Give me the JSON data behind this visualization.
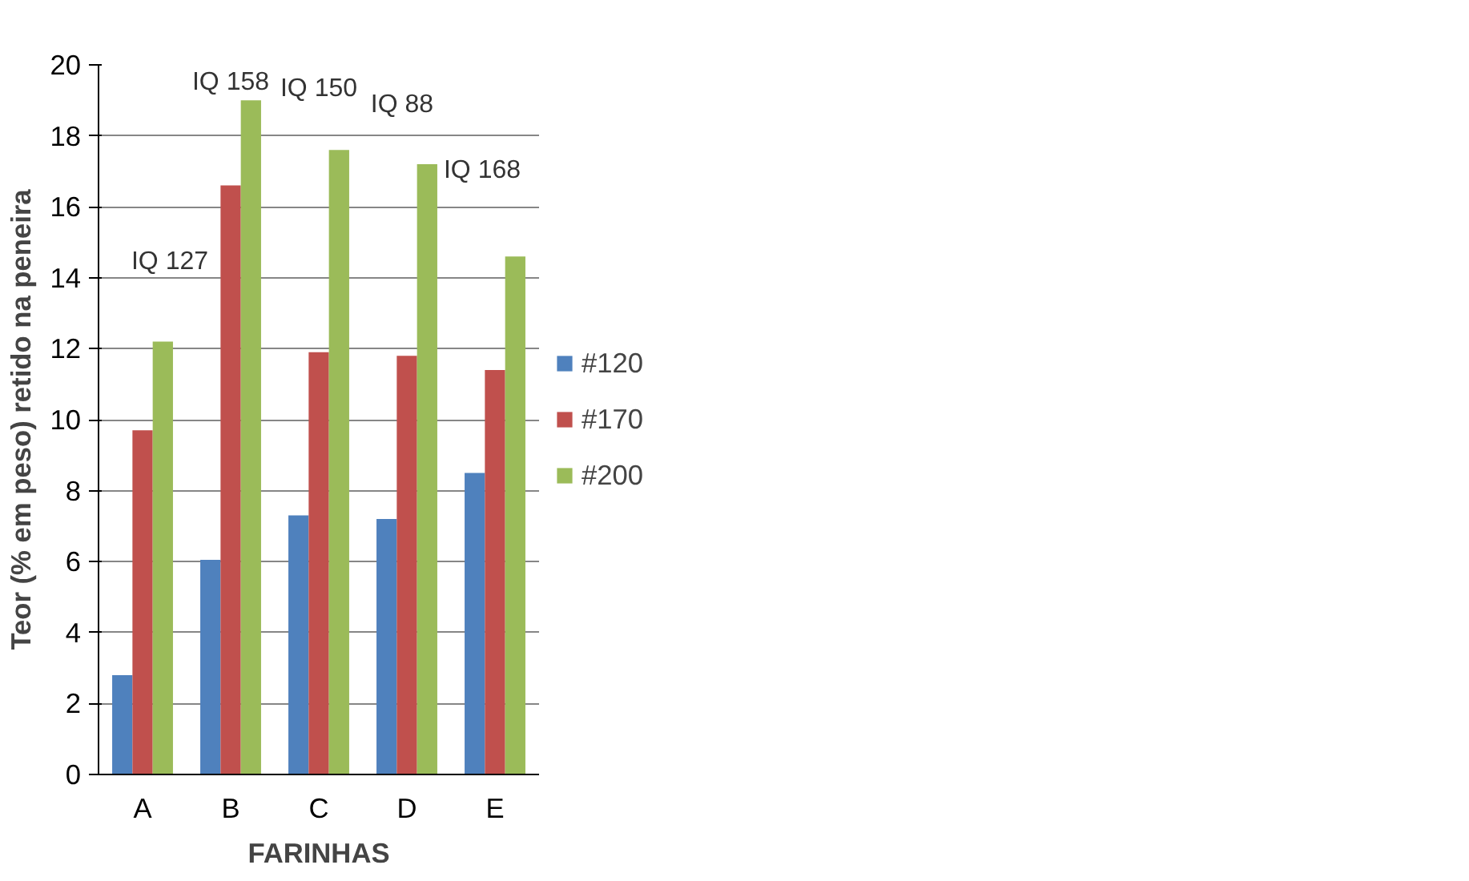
{
  "chart_data": {
    "type": "bar",
    "xlabel": "FARINHAS",
    "ylabel": "Teor (% em peso) retido na peneira",
    "categories": [
      "A",
      "B",
      "C",
      "D",
      "E"
    ],
    "series": [
      {
        "name": "#120",
        "color": "#4f81bd",
        "values": [
          2.8,
          6.05,
          7.3,
          7.2,
          8.5
        ]
      },
      {
        "name": "#170",
        "color": "#c0504d",
        "values": [
          9.7,
          16.6,
          11.9,
          11.8,
          11.4
        ]
      },
      {
        "name": "#200",
        "color": "#9bbb59",
        "values": [
          12.2,
          19.0,
          17.6,
          17.2,
          14.6
        ]
      }
    ],
    "ylim": [
      0,
      20
    ],
    "yticks": [
      0,
      2,
      4,
      6,
      8,
      10,
      12,
      14,
      16,
      18,
      20
    ],
    "grid": "y",
    "legend": "right",
    "annotations": [
      "IQ 127",
      "IQ 158",
      "IQ 150",
      "IQ 88",
      "IQ 168"
    ]
  }
}
